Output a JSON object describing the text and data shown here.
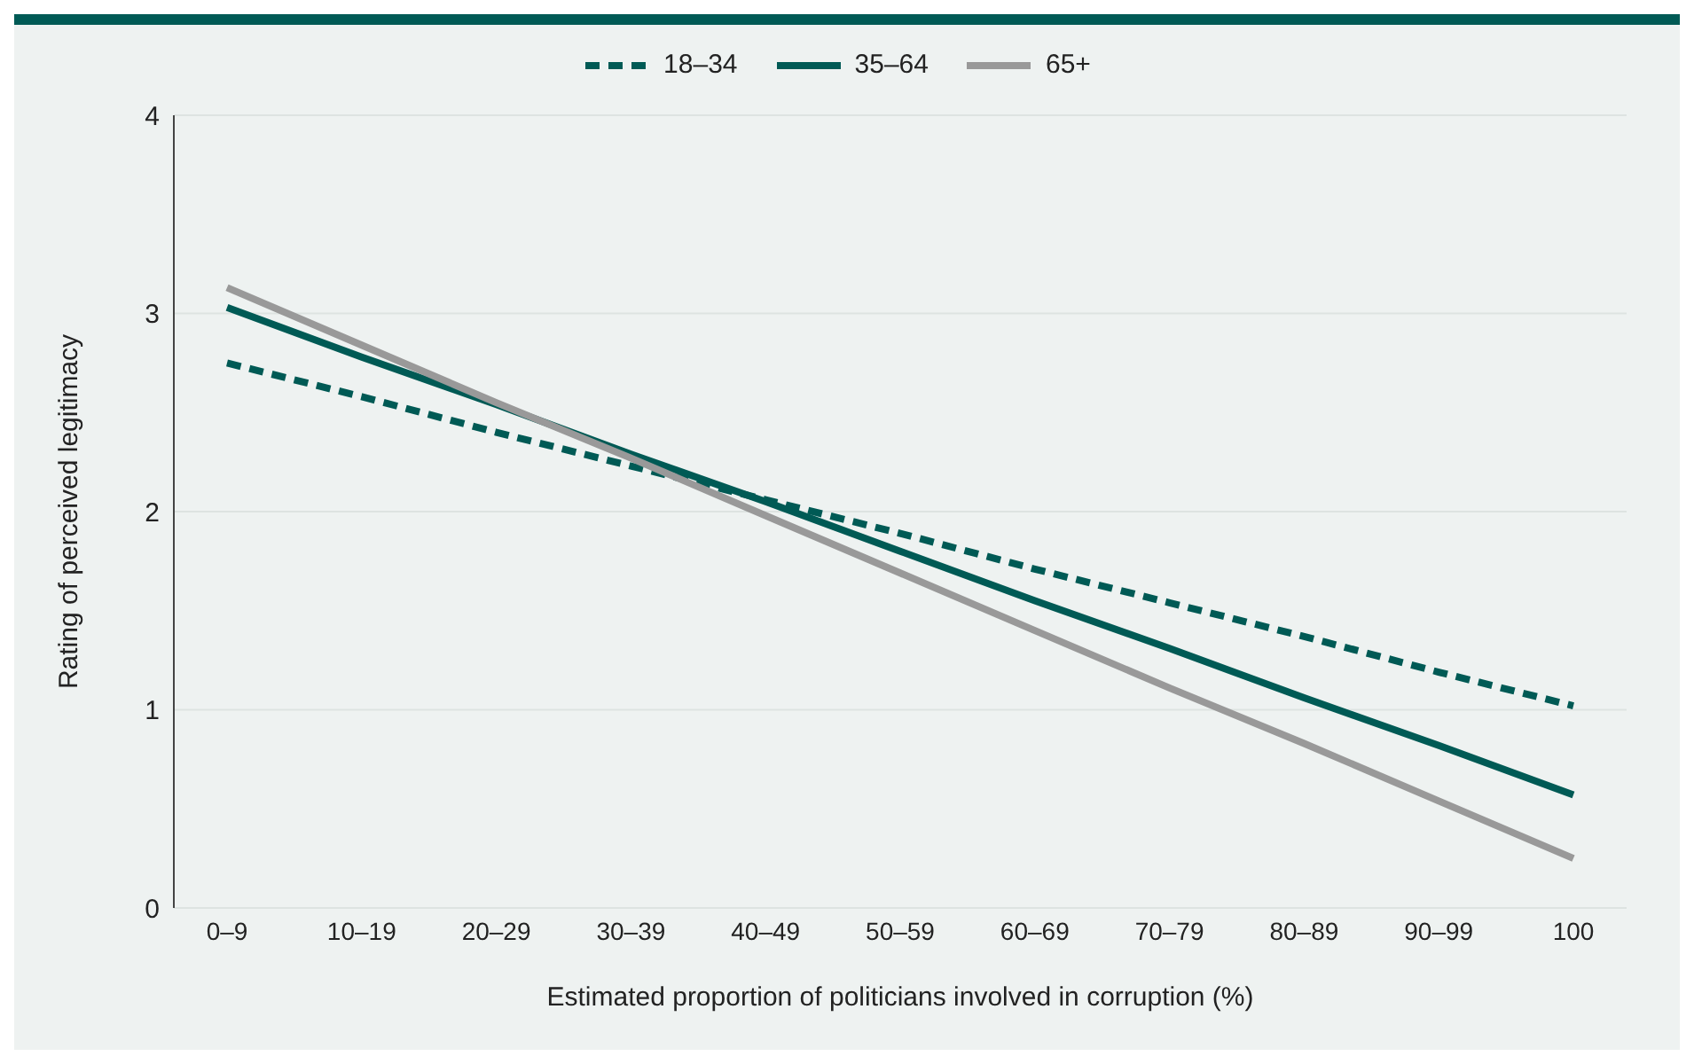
{
  "chart_data": {
    "type": "line",
    "xlabel": "Estimated proportion of politicians involved in corruption (%)",
    "ylabel": "Rating of perceived legitimacy",
    "categories": [
      "0–9",
      "10–19",
      "20–29",
      "30–39",
      "40–49",
      "50–59",
      "60–69",
      "70–79",
      "80–89",
      "90–99",
      "100"
    ],
    "series": [
      {
        "name": "18–34",
        "color": "#005a55",
        "line_style": "dashed",
        "values": [
          2.75,
          2.58,
          2.4,
          2.23,
          2.06,
          1.89,
          1.71,
          1.54,
          1.37,
          1.19,
          1.02
        ]
      },
      {
        "name": "35–64",
        "color": "#005a55",
        "line_style": "solid",
        "values": [
          3.03,
          2.78,
          2.54,
          2.29,
          2.05,
          1.8,
          1.55,
          1.31,
          1.06,
          0.82,
          0.57
        ]
      },
      {
        "name": "65+",
        "color": "#999999",
        "line_style": "solid",
        "values": [
          3.13,
          2.84,
          2.55,
          2.27,
          1.98,
          1.69,
          1.4,
          1.11,
          0.83,
          0.54,
          0.25
        ]
      }
    ],
    "ylim": [
      0,
      4
    ],
    "yticks": [
      0,
      1,
      2,
      3,
      4
    ],
    "grid": "y",
    "legend": "top",
    "marker": "none"
  }
}
